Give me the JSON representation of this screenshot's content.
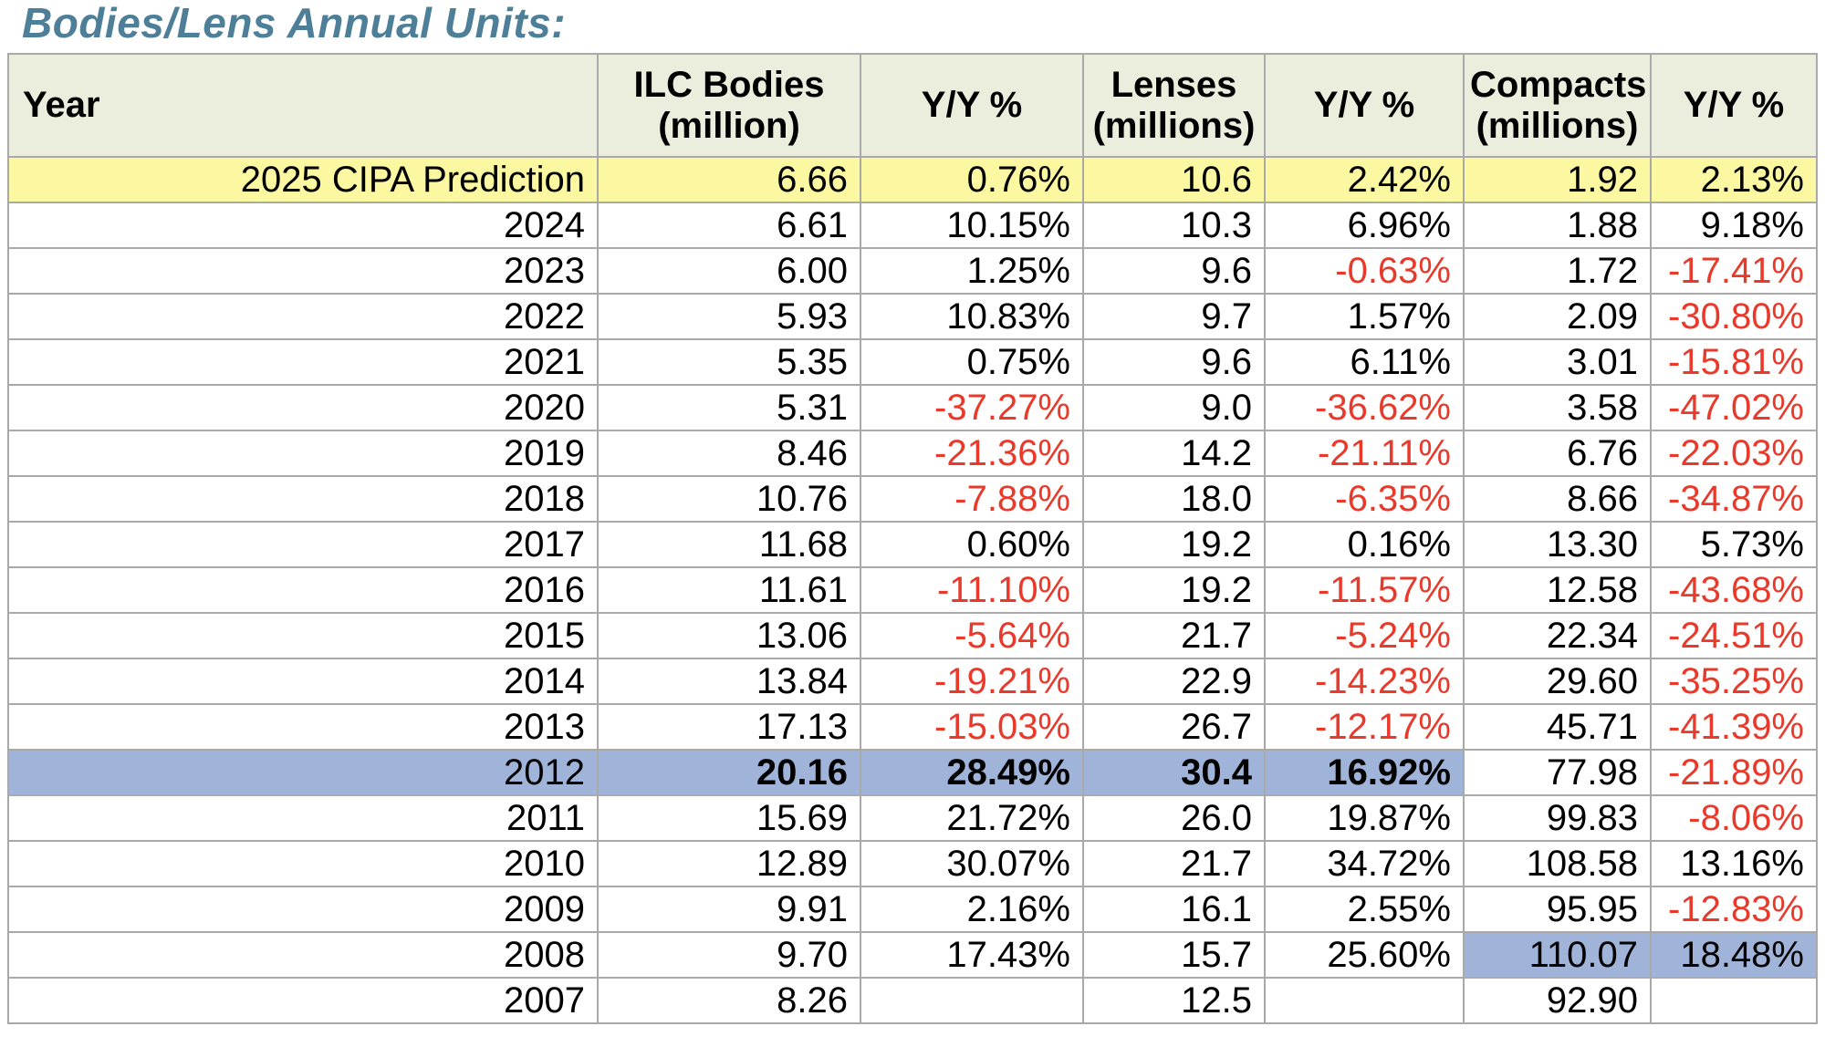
{
  "title": "Bodies/Lens Annual Units:",
  "colors": {
    "title_text": "#4d7f99",
    "header_bg": "#ebeedc",
    "prediction_row_bg": "#fbf8a1",
    "highlight_bg": "#9fb4d8",
    "negative_text": "#e8392b",
    "grid_line": "#a9a9a9",
    "body_text": "#000000"
  },
  "table": {
    "columns": [
      {
        "id": "year",
        "label": "Year"
      },
      {
        "id": "ilc-bodies",
        "label": "ILC Bodies\n(million)"
      },
      {
        "id": "ilc-yoy",
        "label": "Y/Y %"
      },
      {
        "id": "lenses",
        "label": "Lenses\n(millions)"
      },
      {
        "id": "lenses-yoy",
        "label": "Y/Y %"
      },
      {
        "id": "compacts",
        "label": "Compacts\n(millions)"
      },
      {
        "id": "compacts-yoy",
        "label": "Y/Y %"
      }
    ],
    "rows": [
      {
        "label": "2025 CIPA Prediction",
        "values": [
          "6.66",
          "0.76%",
          "10.6",
          "2.42%",
          "1.92",
          "2.13%"
        ],
        "highlight": {
          "color": "yellow",
          "cells": [
            "label",
            0,
            1,
            2,
            3,
            4,
            5
          ]
        }
      },
      {
        "label": "2024",
        "values": [
          "6.61",
          "10.15%",
          "10.3",
          "6.96%",
          "1.88",
          "9.18%"
        ]
      },
      {
        "label": "2023",
        "values": [
          "6.00",
          "1.25%",
          "9.6",
          "-0.63%",
          "1.72",
          "-17.41%"
        ]
      },
      {
        "label": "2022",
        "values": [
          "5.93",
          "10.83%",
          "9.7",
          "1.57%",
          "2.09",
          "-30.80%"
        ]
      },
      {
        "label": "2021",
        "values": [
          "5.35",
          "0.75%",
          "9.6",
          "6.11%",
          "3.01",
          "-15.81%"
        ]
      },
      {
        "label": "2020",
        "values": [
          "5.31",
          "-37.27%",
          "9.0",
          "-36.62%",
          "3.58",
          "-47.02%"
        ]
      },
      {
        "label": "2019",
        "values": [
          "8.46",
          "-21.36%",
          "14.2",
          "-21.11%",
          "6.76",
          "-22.03%"
        ]
      },
      {
        "label": "2018",
        "values": [
          "10.76",
          "-7.88%",
          "18.0",
          "-6.35%",
          "8.66",
          "-34.87%"
        ]
      },
      {
        "label": "2017",
        "values": [
          "11.68",
          "0.60%",
          "19.2",
          "0.16%",
          "13.30",
          "5.73%"
        ]
      },
      {
        "label": "2016",
        "values": [
          "11.61",
          "-11.10%",
          "19.2",
          "-11.57%",
          "12.58",
          "-43.68%"
        ]
      },
      {
        "label": "2015",
        "values": [
          "13.06",
          "-5.64%",
          "21.7",
          "-5.24%",
          "22.34",
          "-24.51%"
        ]
      },
      {
        "label": "2014",
        "values": [
          "13.84",
          "-19.21%",
          "22.9",
          "-14.23%",
          "29.60",
          "-35.25%"
        ]
      },
      {
        "label": "2013",
        "values": [
          "17.13",
          "-15.03%",
          "26.7",
          "-12.17%",
          "45.71",
          "-41.39%"
        ]
      },
      {
        "label": "2012",
        "values": [
          "20.16",
          "28.49%",
          "30.4",
          "16.92%",
          "77.98",
          "-21.89%"
        ],
        "highlight": {
          "color": "blue",
          "cells": [
            "label",
            0,
            1,
            2,
            3
          ]
        },
        "bold_cells": [
          0,
          1,
          2,
          3
        ]
      },
      {
        "label": "2011",
        "values": [
          "15.69",
          "21.72%",
          "26.0",
          "19.87%",
          "99.83",
          "-8.06%"
        ]
      },
      {
        "label": "2010",
        "values": [
          "12.89",
          "30.07%",
          "21.7",
          "34.72%",
          "108.58",
          "13.16%"
        ]
      },
      {
        "label": "2009",
        "values": [
          "9.91",
          "2.16%",
          "16.1",
          "2.55%",
          "95.95",
          "-12.83%"
        ]
      },
      {
        "label": "2008",
        "values": [
          "9.70",
          "17.43%",
          "15.7",
          "25.60%",
          "110.07",
          "18.48%"
        ],
        "highlight": {
          "color": "blue",
          "cells": [
            4,
            5
          ]
        }
      },
      {
        "label": "2007",
        "values": [
          "8.26",
          "",
          "12.5",
          "",
          "92.90",
          ""
        ]
      }
    ]
  }
}
